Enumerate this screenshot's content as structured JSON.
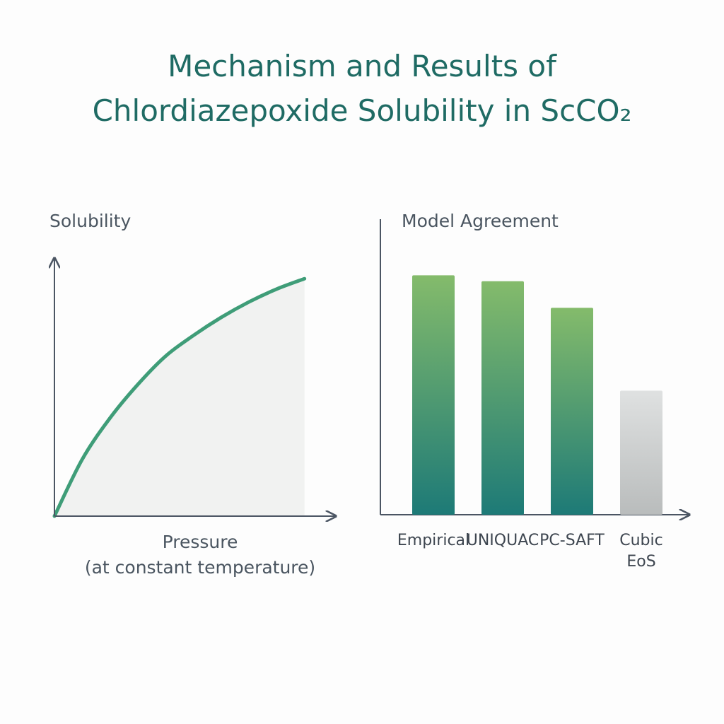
{
  "title": "Mechanism and Results of Chlordiazepoxide Solubility in ScCO₂",
  "chart_data": [
    {
      "type": "line",
      "y_label": "Solubility",
      "x_label": "Pressure",
      "x_label_note": "(at constant temperature)",
      "x": [
        0,
        1,
        2,
        3,
        4,
        5,
        6,
        7,
        8,
        9
      ],
      "values": [
        0,
        22,
        38,
        51,
        62,
        70,
        77,
        83,
        88,
        92
      ],
      "color": "#3f9d78",
      "area_color": "#f1f2f1",
      "xlim": [
        0,
        10
      ],
      "ylim": [
        0,
        100
      ]
    },
    {
      "type": "bar",
      "title": "Model Agreement",
      "categories": [
        "Empirical",
        "UNIQUAC",
        "PC-SAFT",
        "Cubic EoS"
      ],
      "values": [
        81,
        79,
        70,
        42
      ],
      "colors": [
        [
          "#84bb6b",
          "#1d7a77"
        ],
        [
          "#84bb6b",
          "#1d7a77"
        ],
        [
          "#84bb6b",
          "#1d7a77"
        ],
        [
          "#dfe1e1",
          "#b9bcbc"
        ]
      ],
      "ylim": [
        0,
        100
      ]
    }
  ]
}
